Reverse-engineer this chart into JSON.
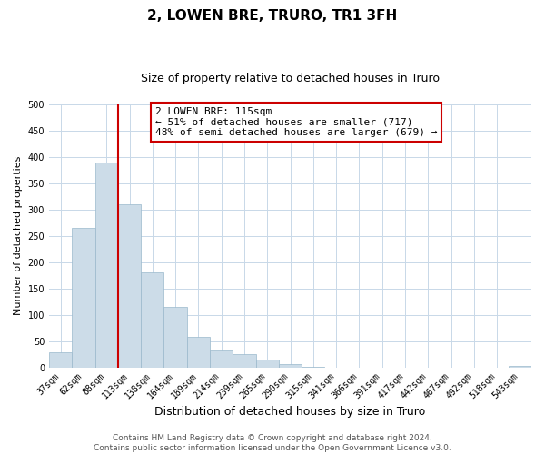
{
  "title": "2, LOWEN BRE, TRURO, TR1 3FH",
  "subtitle": "Size of property relative to detached houses in Truro",
  "xlabel": "Distribution of detached houses by size in Truro",
  "ylabel": "Number of detached properties",
  "bar_labels": [
    "37sqm",
    "62sqm",
    "88sqm",
    "113sqm",
    "138sqm",
    "164sqm",
    "189sqm",
    "214sqm",
    "239sqm",
    "265sqm",
    "290sqm",
    "315sqm",
    "341sqm",
    "366sqm",
    "391sqm",
    "417sqm",
    "442sqm",
    "467sqm",
    "492sqm",
    "518sqm",
    "543sqm"
  ],
  "bar_values": [
    29,
    265,
    390,
    310,
    180,
    115,
    58,
    32,
    25,
    15,
    6,
    1,
    0,
    0,
    0,
    0,
    0,
    0,
    0,
    0,
    2
  ],
  "bar_color": "#ccdce8",
  "bar_edge_color": "#9ab8cc",
  "vline_x_index": 2,
  "vline_color": "#cc0000",
  "annotation_title": "2 LOWEN BRE: 115sqm",
  "annotation_line1": "← 51% of detached houses are smaller (717)",
  "annotation_line2": "48% of semi-detached houses are larger (679) →",
  "annotation_box_color": "#ffffff",
  "annotation_box_edge": "#cc0000",
  "ylim": [
    0,
    500
  ],
  "yticks": [
    0,
    50,
    100,
    150,
    200,
    250,
    300,
    350,
    400,
    450,
    500
  ],
  "footer_line1": "Contains HM Land Registry data © Crown copyright and database right 2024.",
  "footer_line2": "Contains public sector information licensed under the Open Government Licence v3.0.",
  "grid_color": "#c8d8e8",
  "title_fontsize": 11,
  "subtitle_fontsize": 9,
  "xlabel_fontsize": 9,
  "ylabel_fontsize": 8,
  "tick_fontsize": 7,
  "annotation_fontsize": 8,
  "footer_fontsize": 6.5
}
